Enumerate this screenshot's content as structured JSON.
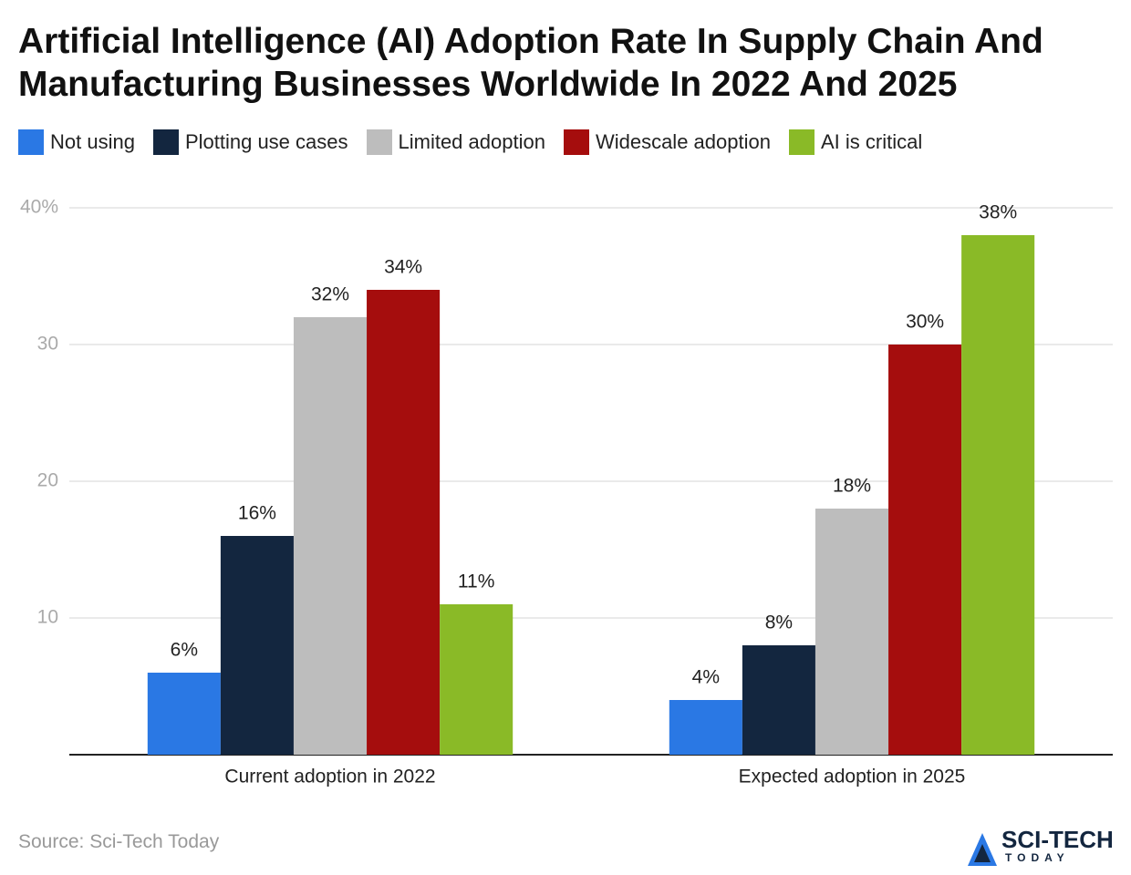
{
  "chart_data": {
    "type": "bar",
    "title": "Artificial Intelligence (AI) Adoption Rate In Supply Chain And Manufacturing Businesses Worldwide In 2022 And 2025",
    "categories": [
      "Current adoption in 2022",
      "Expected adoption in 2025"
    ],
    "series": [
      {
        "name": "Not using",
        "color": "#2a78e4",
        "values": [
          6,
          4
        ],
        "value_labels": [
          "6%",
          "4%"
        ]
      },
      {
        "name": "Plotting use cases",
        "color": "#13263f",
        "values": [
          16,
          8
        ],
        "value_labels": [
          "16%",
          "8%"
        ]
      },
      {
        "name": "Limited adoption",
        "color": "#bdbdbd",
        "values": [
          32,
          18
        ],
        "value_labels": [
          "32%",
          "18%"
        ]
      },
      {
        "name": "Widescale adoption",
        "color": "#a50d0d",
        "values": [
          34,
          30
        ],
        "value_labels": [
          "34%",
          "30%"
        ]
      },
      {
        "name": "AI is critical",
        "color": "#8aba27",
        "values": [
          11,
          38
        ],
        "value_labels": [
          "11%",
          "38%"
        ]
      }
    ],
    "ylim": [
      0,
      40
    ],
    "yticks": [
      10,
      20,
      30,
      {
        "value": 40,
        "label": "40%"
      }
    ],
    "grid": true,
    "legend": "top",
    "source": "Source: Sci-Tech Today",
    "logo": {
      "name": "SCI-TECH",
      "sub": "TODAY"
    }
  }
}
